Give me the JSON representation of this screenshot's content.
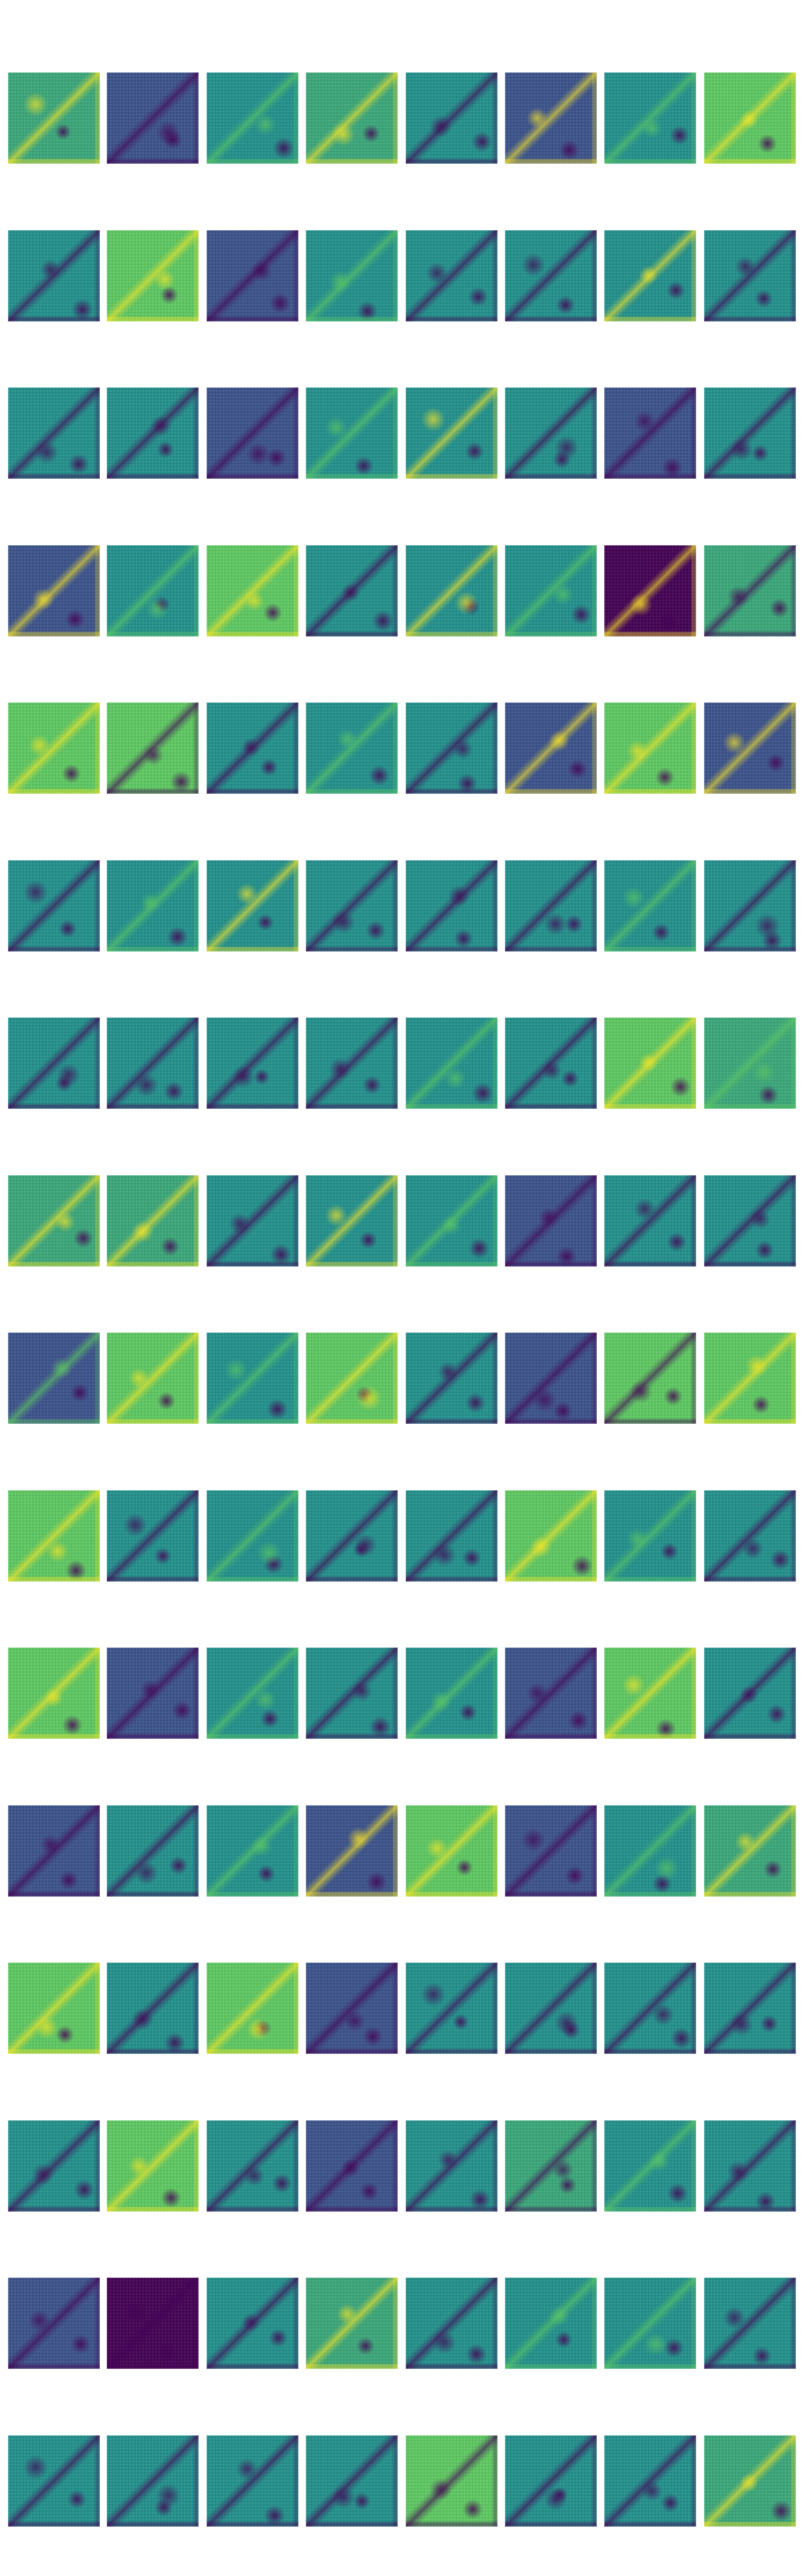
{
  "figure": {
    "description_type": "grid-of-heatmaps",
    "rows": 16,
    "columns": 8,
    "colormap": "viridis",
    "colors": {
      "viridis_dark": "#440154",
      "viridis_blue": "#3b528b",
      "viridis_teal": "#21918c",
      "viridis_green": "#5ec962",
      "viridis_yellow": "#fde725",
      "background": "#ffffff"
    },
    "tiles": [
      {
        "base": "teal-green",
        "accent": "yellow"
      },
      {
        "base": "blue",
        "accent": "dark"
      },
      {
        "base": "teal",
        "accent": "green"
      },
      {
        "base": "teal-green",
        "accent": "yellow"
      },
      {
        "base": "teal",
        "accent": "dark"
      },
      {
        "base": "blue",
        "accent": "yellow"
      },
      {
        "base": "teal",
        "accent": "green"
      },
      {
        "base": "green",
        "accent": "yellow"
      },
      {
        "base": "teal",
        "accent": "dark"
      },
      {
        "base": "green",
        "accent": "yellow"
      },
      {
        "base": "blue",
        "accent": "dark"
      },
      {
        "base": "teal",
        "accent": "green"
      },
      {
        "base": "teal",
        "accent": "dark"
      },
      {
        "base": "teal",
        "accent": "dark"
      },
      {
        "base": "teal",
        "accent": "yellow"
      },
      {
        "base": "teal",
        "accent": "dark"
      },
      {
        "base": "teal",
        "accent": "dark"
      },
      {
        "base": "teal",
        "accent": "dark"
      },
      {
        "base": "blue",
        "accent": "dark"
      },
      {
        "base": "teal",
        "accent": "green"
      },
      {
        "base": "teal",
        "accent": "yellow"
      },
      {
        "base": "teal",
        "accent": "dark"
      },
      {
        "base": "blue",
        "accent": "dark"
      },
      {
        "base": "teal",
        "accent": "dark"
      },
      {
        "base": "blue",
        "accent": "yellow"
      },
      {
        "base": "teal",
        "accent": "green"
      },
      {
        "base": "green",
        "accent": "yellow"
      },
      {
        "base": "teal",
        "accent": "dark"
      },
      {
        "base": "teal",
        "accent": "yellow"
      },
      {
        "base": "teal",
        "accent": "green"
      },
      {
        "base": "dark",
        "accent": "yellow"
      },
      {
        "base": "teal-green",
        "accent": "dark"
      },
      {
        "base": "green",
        "accent": "yellow"
      },
      {
        "base": "green",
        "accent": "dark"
      },
      {
        "base": "teal",
        "accent": "dark"
      },
      {
        "base": "teal",
        "accent": "green"
      },
      {
        "base": "teal",
        "accent": "dark"
      },
      {
        "base": "blue",
        "accent": "yellow"
      },
      {
        "base": "green",
        "accent": "yellow"
      },
      {
        "base": "blue",
        "accent": "yellow"
      },
      {
        "base": "teal",
        "accent": "dark"
      },
      {
        "base": "teal",
        "accent": "green"
      },
      {
        "base": "teal",
        "accent": "yellow"
      },
      {
        "base": "teal",
        "accent": "dark"
      },
      {
        "base": "teal",
        "accent": "dark"
      },
      {
        "base": "teal",
        "accent": "dark"
      },
      {
        "base": "teal",
        "accent": "green"
      },
      {
        "base": "teal",
        "accent": "dark"
      },
      {
        "base": "teal",
        "accent": "dark"
      },
      {
        "base": "teal",
        "accent": "dark"
      },
      {
        "base": "teal",
        "accent": "dark"
      },
      {
        "base": "teal",
        "accent": "dark"
      },
      {
        "base": "teal",
        "accent": "green"
      },
      {
        "base": "teal",
        "accent": "dark"
      },
      {
        "base": "green",
        "accent": "yellow"
      },
      {
        "base": "teal-green",
        "accent": "green"
      },
      {
        "base": "teal-green",
        "accent": "yellow"
      },
      {
        "base": "teal-green",
        "accent": "yellow"
      },
      {
        "base": "teal",
        "accent": "dark"
      },
      {
        "base": "teal",
        "accent": "yellow"
      },
      {
        "base": "teal",
        "accent": "green"
      },
      {
        "base": "blue",
        "accent": "dark"
      },
      {
        "base": "teal",
        "accent": "dark"
      },
      {
        "base": "teal",
        "accent": "dark"
      },
      {
        "base": "blue",
        "accent": "green"
      },
      {
        "base": "green",
        "accent": "yellow"
      },
      {
        "base": "teal",
        "accent": "green"
      },
      {
        "base": "green",
        "accent": "yellow"
      },
      {
        "base": "teal",
        "accent": "dark"
      },
      {
        "base": "blue",
        "accent": "dark"
      },
      {
        "base": "green",
        "accent": "dark"
      },
      {
        "base": "green",
        "accent": "yellow"
      },
      {
        "base": "green",
        "accent": "yellow"
      },
      {
        "base": "teal",
        "accent": "dark"
      },
      {
        "base": "teal",
        "accent": "green"
      },
      {
        "base": "teal",
        "accent": "dark"
      },
      {
        "base": "teal",
        "accent": "dark"
      },
      {
        "base": "green",
        "accent": "yellow"
      },
      {
        "base": "teal",
        "accent": "green"
      },
      {
        "base": "teal",
        "accent": "dark"
      },
      {
        "base": "green",
        "accent": "yellow"
      },
      {
        "base": "blue",
        "accent": "dark"
      },
      {
        "base": "teal",
        "accent": "green"
      },
      {
        "base": "teal",
        "accent": "dark"
      },
      {
        "base": "teal",
        "accent": "green"
      },
      {
        "base": "blue",
        "accent": "dark"
      },
      {
        "base": "green",
        "accent": "yellow"
      },
      {
        "base": "teal",
        "accent": "dark"
      },
      {
        "base": "blue",
        "accent": "dark"
      },
      {
        "base": "teal",
        "accent": "dark"
      },
      {
        "base": "teal",
        "accent": "green"
      },
      {
        "base": "blue",
        "accent": "yellow"
      },
      {
        "base": "green",
        "accent": "yellow"
      },
      {
        "base": "blue",
        "accent": "dark"
      },
      {
        "base": "teal",
        "accent": "green"
      },
      {
        "base": "teal-green",
        "accent": "yellow"
      },
      {
        "base": "green",
        "accent": "yellow"
      },
      {
        "base": "teal",
        "accent": "dark"
      },
      {
        "base": "green",
        "accent": "yellow"
      },
      {
        "base": "blue",
        "accent": "dark"
      },
      {
        "base": "teal",
        "accent": "dark"
      },
      {
        "base": "teal",
        "accent": "dark"
      },
      {
        "base": "teal",
        "accent": "dark"
      },
      {
        "base": "teal",
        "accent": "dark"
      },
      {
        "base": "teal",
        "accent": "dark"
      },
      {
        "base": "green",
        "accent": "yellow"
      },
      {
        "base": "teal",
        "accent": "dark"
      },
      {
        "base": "blue",
        "accent": "dark"
      },
      {
        "base": "teal",
        "accent": "dark"
      },
      {
        "base": "teal-green",
        "accent": "dark"
      },
      {
        "base": "teal",
        "accent": "green"
      },
      {
        "base": "teal",
        "accent": "dark"
      },
      {
        "base": "blue",
        "accent": "dark"
      },
      {
        "base": "dark",
        "accent": "dark"
      },
      {
        "base": "teal",
        "accent": "dark"
      },
      {
        "base": "teal-green",
        "accent": "yellow"
      },
      {
        "base": "teal",
        "accent": "dark"
      },
      {
        "base": "teal",
        "accent": "green"
      },
      {
        "base": "teal",
        "accent": "green"
      },
      {
        "base": "teal",
        "accent": "dark"
      },
      {
        "base": "teal",
        "accent": "dark"
      },
      {
        "base": "teal",
        "accent": "dark"
      },
      {
        "base": "teal",
        "accent": "dark"
      },
      {
        "base": "teal",
        "accent": "dark"
      },
      {
        "base": "green",
        "accent": "dark"
      },
      {
        "base": "teal",
        "accent": "dark"
      },
      {
        "base": "teal",
        "accent": "dark"
      },
      {
        "base": "teal-green",
        "accent": "yellow"
      }
    ]
  }
}
